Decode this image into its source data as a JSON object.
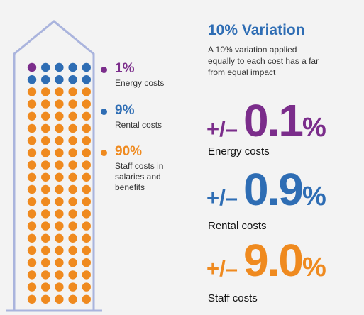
{
  "colors": {
    "energy": "#7b2d8b",
    "rental": "#2e6db4",
    "staff": "#ef8a1f",
    "outline": "#aab4dd"
  },
  "grid": {
    "columns": 5,
    "rows": 20,
    "dot_counts": {
      "energy": 1,
      "rental": 9,
      "staff": 90
    }
  },
  "legend": [
    {
      "key": "energy",
      "percent": "1%",
      "label_lines": [
        "Energy costs"
      ]
    },
    {
      "key": "rental",
      "percent": "9%",
      "label_lines": [
        "Rental costs"
      ]
    },
    {
      "key": "staff",
      "percent": "90%",
      "label_lines": [
        "Staff costs in",
        "salaries and",
        "benefits"
      ]
    }
  ],
  "heading": "10% Variation",
  "subtext_lines": [
    "A 10% variation applied",
    "equally to each cost has a far",
    "from equal impact"
  ],
  "impacts": [
    {
      "key": "energy",
      "sign": "+/–",
      "value": "0.1",
      "unit": "%",
      "label": "Energy costs"
    },
    {
      "key": "rental",
      "sign": "+/–",
      "value": "0.9",
      "unit": "%",
      "label": "Rental costs"
    },
    {
      "key": "staff",
      "sign": "+/–",
      "value": "9.0",
      "unit": "%",
      "label": "Staff costs"
    }
  ]
}
